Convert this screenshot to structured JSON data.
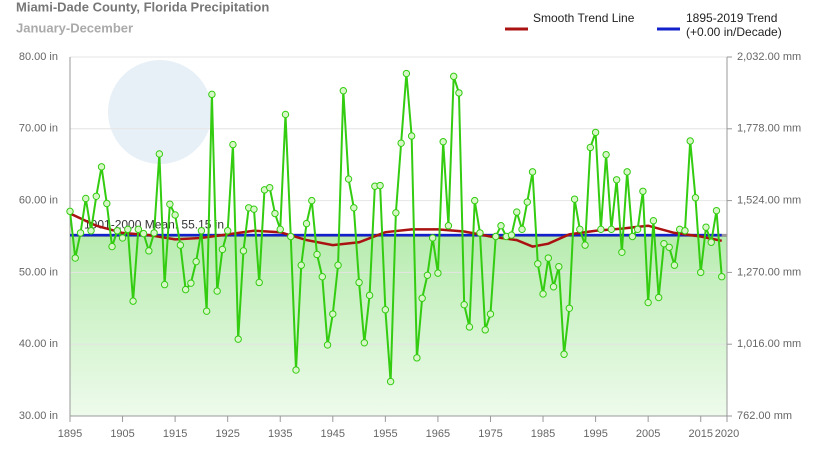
{
  "chart_data": {
    "type": "line",
    "title": "Miami-Dade County, Florida Precipitation",
    "subtitle": "January-December",
    "xlim": [
      1895,
      2020
    ],
    "xticks": [
      1895,
      1905,
      1915,
      1925,
      1935,
      1945,
      1955,
      1965,
      1975,
      1985,
      1995,
      2005,
      2015,
      2020
    ],
    "ylim": [
      30,
      80
    ],
    "yticks": [
      {
        "value": 30,
        "label": "30.00 in"
      },
      {
        "value": 40,
        "label": "40.00 in"
      },
      {
        "value": 50,
        "label": "50.00 in"
      },
      {
        "value": 60,
        "label": "60.00 in"
      },
      {
        "value": 70,
        "label": "70.00 in"
      },
      {
        "value": 80,
        "label": "80.00 in"
      }
    ],
    "y2lim": [
      762,
      2032
    ],
    "y2ticks": [
      {
        "value": 762,
        "label": "762.00 mm"
      },
      {
        "value": 1016,
        "label": "1,016.00 mm"
      },
      {
        "value": 1270,
        "label": "1,270.00 mm"
      },
      {
        "value": 1524,
        "label": "1,524.00 mm"
      },
      {
        "value": 1778,
        "label": "1,778.00 mm"
      },
      {
        "value": 2032,
        "label": "2,032.00 mm"
      }
    ],
    "grid": true,
    "mean": {
      "value": 55.15,
      "label": "1901-2000 Mean: 55.15 in"
    },
    "x": [
      1895,
      1896,
      1897,
      1898,
      1899,
      1900,
      1901,
      1902,
      1903,
      1904,
      1905,
      1906,
      1907,
      1908,
      1909,
      1910,
      1911,
      1912,
      1913,
      1914,
      1915,
      1916,
      1917,
      1918,
      1919,
      1920,
      1921,
      1922,
      1923,
      1924,
      1925,
      1926,
      1927,
      1928,
      1929,
      1930,
      1931,
      1932,
      1933,
      1934,
      1935,
      1936,
      1937,
      1938,
      1939,
      1940,
      1941,
      1942,
      1943,
      1944,
      1945,
      1946,
      1947,
      1948,
      1949,
      1950,
      1951,
      1952,
      1953,
      1954,
      1955,
      1956,
      1957,
      1958,
      1959,
      1960,
      1961,
      1962,
      1963,
      1964,
      1965,
      1966,
      1967,
      1968,
      1969,
      1970,
      1971,
      1972,
      1973,
      1974,
      1975,
      1976,
      1977,
      1978,
      1979,
      1980,
      1981,
      1982,
      1983,
      1984,
      1985,
      1986,
      1987,
      1988,
      1989,
      1990,
      1991,
      1992,
      1993,
      1994,
      1995,
      1996,
      1997,
      1998,
      1999,
      2000,
      2001,
      2002,
      2003,
      2004,
      2005,
      2006,
      2007,
      2008,
      2009,
      2010,
      2011,
      2012,
      2013,
      2014,
      2015,
      2016,
      2017,
      2018,
      2019
    ],
    "series": [
      {
        "color": "#33cc11",
        "values": [
          58.5,
          52,
          55.5,
          60.3,
          55.8,
          60.6,
          64.7,
          59.6,
          53.6,
          55.8,
          54.8,
          56,
          46,
          56,
          55.4,
          53,
          55.5,
          66.5,
          48.3,
          59.5,
          58,
          53.8,
          47.6,
          48.5,
          51.5,
          55.8,
          44.6,
          74.8,
          47.4,
          53.2,
          55.8,
          67.8,
          40.7,
          53,
          59,
          58.8,
          48.6,
          61.5,
          61.8,
          58.2,
          56,
          72,
          55,
          36.4,
          51,
          56.8,
          60,
          52.5,
          49.4,
          39.9,
          44.2,
          51,
          75.3,
          63,
          59,
          48.6,
          40.2,
          46.8,
          62,
          62.1,
          44.8,
          34.8,
          58.3,
          68,
          77.7,
          69,
          38.1,
          46.4,
          49.6,
          54.8,
          49.9,
          68.2,
          56.5,
          77.3,
          75,
          45.5,
          42.4,
          60,
          55.5,
          42,
          44.2,
          55,
          56.5,
          55,
          55.2,
          58.4,
          56,
          59.8,
          64,
          51.2,
          47,
          52,
          48,
          50.8,
          38.6,
          45,
          60.2,
          56,
          53.8,
          67.4,
          69.5,
          56,
          66.4,
          56,
          62.9,
          52.8,
          64,
          55,
          56,
          61.3,
          45.8,
          57.2,
          46.5,
          54,
          53.5,
          51,
          56,
          55.8,
          68.3,
          60.4,
          50,
          56.3,
          54.2,
          58.6,
          49.4
        ]
      },
      {
        "name": "Smooth Trend Line",
        "color": "#aa1111",
        "x": [
          1895,
          1900,
          1905,
          1910,
          1915,
          1920,
          1925,
          1930,
          1935,
          1940,
          1945,
          1950,
          1955,
          1960,
          1965,
          1970,
          1975,
          1980,
          1983,
          1986,
          1990,
          1995,
          2000,
          2005,
          2010,
          2015,
          2019
        ],
        "values": [
          58.2,
          56.5,
          55.5,
          55.2,
          54.6,
          54.8,
          55.3,
          55.8,
          55.6,
          54.5,
          53.8,
          54.2,
          55.6,
          56,
          56,
          55.7,
          55,
          54.5,
          53.6,
          54,
          55.3,
          55.8,
          56.1,
          56.5,
          55.5,
          55,
          54.4
        ]
      },
      {
        "name": "1895-2019 Trend (+0.00 in/Decade)",
        "color": "#1122cc",
        "x": [
          1895,
          2019
        ],
        "values": [
          55.2,
          55.2
        ]
      }
    ]
  }
}
